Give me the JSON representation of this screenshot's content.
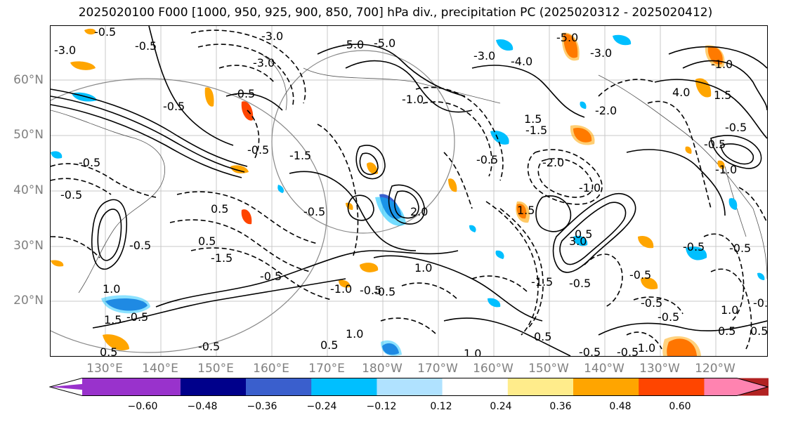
{
  "title": "2025020100 F000 [1000, 950, 925, 900, 850, 700] hPa div., precipitation PC (2025020312 - 2025020412)",
  "lat_labels": [
    "60°N",
    "50°N",
    "40°N",
    "30°N",
    "20°N"
  ],
  "lon_labels": [
    "130°E",
    "140°E",
    "150°E",
    "160°E",
    "170°E",
    "180°W",
    "170°W",
    "160°W",
    "150°W",
    "140°W",
    "130°W",
    "120°W"
  ],
  "contour_labels": [
    "-3.0",
    "-5.0",
    "-5.0",
    "-3.0",
    "-3.0",
    "-4.0",
    "-3.0",
    "-5.0",
    "-3.0",
    "4.0",
    "-0.5",
    "-1.0",
    "-2.0",
    "-0.5",
    "-1.5",
    "1.5",
    "-2.0",
    "-0.5",
    "0.5",
    "-1.5",
    "1.0",
    "-1.0",
    "2.0",
    "-0.5",
    "-0.5",
    "-0.5",
    "-0.5",
    "0.5",
    "-1.5",
    "-0.5",
    "1.5",
    "-1.0",
    "-0.5",
    "1.0",
    "1.5",
    "3.0",
    "-1.0",
    "-0.5",
    "-0.5",
    "1.0",
    "-0.5",
    "-0.5",
    "0.5",
    "-0.5",
    "0.5",
    "1.0",
    "-0.5",
    "-0.5",
    "-0.5",
    "1.0",
    "0.5",
    "-1.0",
    "1.5",
    "-0.5",
    "0.5",
    "-1.0",
    "-0.5",
    "-0.5",
    "0.5",
    "-1.5",
    "0.5",
    "-0.5",
    "-0.5",
    "-0.5",
    "-0.5",
    "-0.5",
    "-0.5"
  ],
  "colorbar": {
    "ticks": [
      "−0.60",
      "−0.48",
      "−0.36",
      "−0.24",
      "−0.12",
      "0.12",
      "0.24",
      "0.36",
      "0.48",
      "0.60"
    ],
    "colors": [
      "#9932cc",
      "#00008b",
      "#3a5fcd",
      "#00bfff",
      "#b0e2ff",
      "#ffffff",
      "#ffec8b",
      "#ffa500",
      "#ff4500",
      "#b22222",
      "#ff83b0"
    ]
  }
}
